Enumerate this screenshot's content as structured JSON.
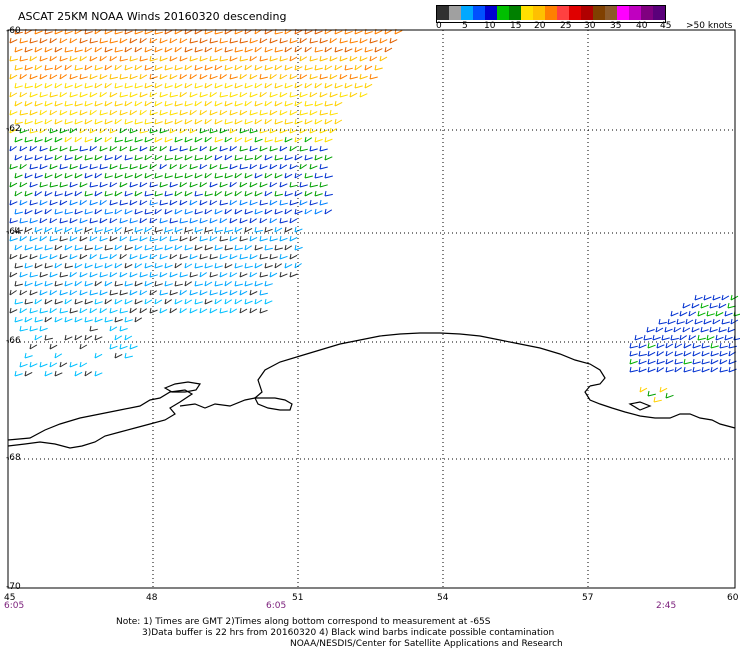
{
  "title": "ASCAT 25KM NOAA Winds 20160320 descending",
  "legend": {
    "colors": [
      "#303030",
      "#a0a0a0",
      "#00a8ff",
      "#0050ff",
      "#0000d0",
      "#00c000",
      "#008000",
      "#ffe000",
      "#ffc000",
      "#ff8000",
      "#ff4040",
      "#e00000",
      "#b00000",
      "#804000",
      "#8b5a2b",
      "#ff00ff",
      "#c000c0",
      "#800080",
      "#5a007a"
    ],
    "labels": [
      "0",
      "5",
      "10",
      "15",
      "20",
      "25",
      "30",
      "35",
      "40",
      "45",
      ">50 knots"
    ]
  },
  "lat_labels": [
    "-60",
    "-62",
    "-64",
    "-66",
    "-68",
    "-70"
  ],
  "lon_labels": [
    "45",
    "48",
    "51",
    "54",
    "57",
    "60"
  ],
  "time_labels": [
    "6:05",
    "6:05",
    "2:45"
  ],
  "notes": [
    "Note: 1) Times are GMT 2)Times along bottom correspond to measurement at -65S",
    "3)Data buffer is 22 hrs from 20160320 4) Black wind barbs indicate possible contamination",
    "NOAA/NESDIS/Center for Satellite Applications and Research"
  ]
}
